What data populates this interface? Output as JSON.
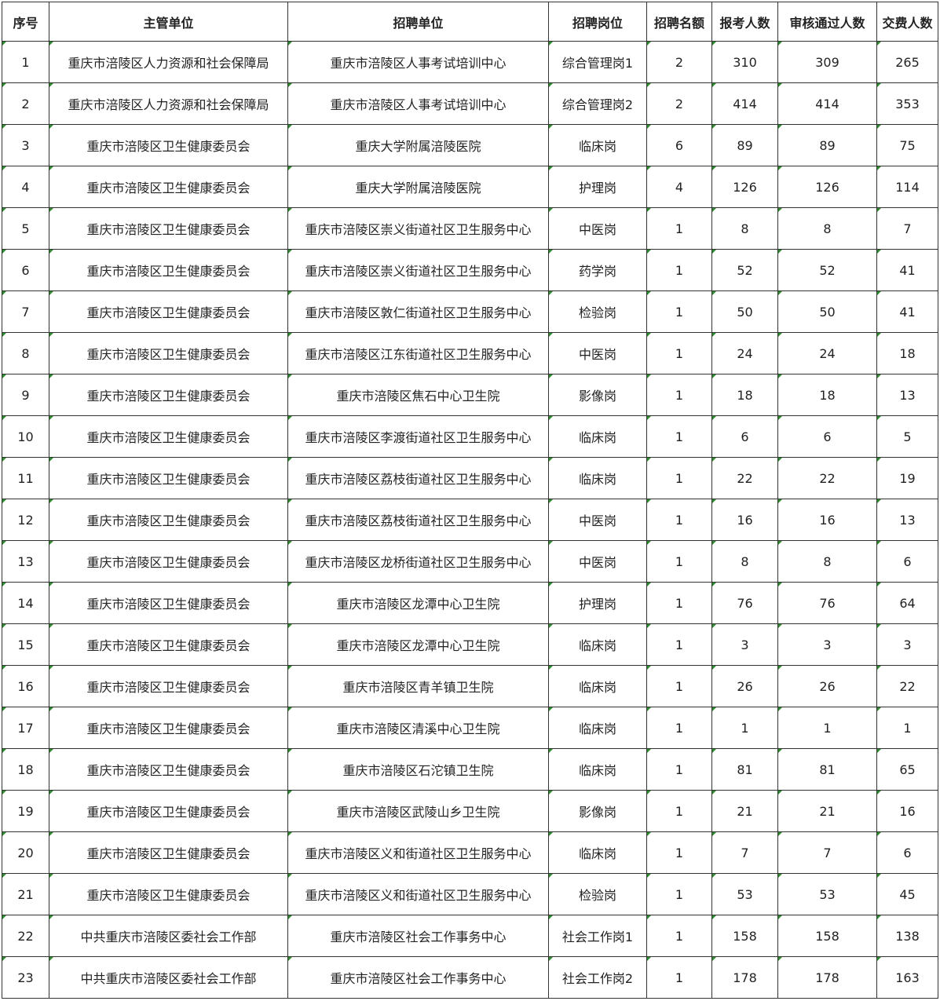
{
  "table": {
    "header": [
      "序号",
      "主管单位",
      "招聘单位",
      "招聘岗位",
      "招聘名额",
      "报考人数",
      "审核通过人数",
      "交费人数"
    ],
    "rows": [
      [
        1,
        "重庆市涪陵区人力资源和社会保障局",
        "重庆市涪陵区人事考试培训中心",
        "综合管理岗1",
        2,
        310,
        309,
        265
      ],
      [
        2,
        "重庆市涪陵区人力资源和社会保障局",
        "重庆市涪陵区人事考试培训中心",
        "综合管理岗2",
        2,
        414,
        414,
        353
      ],
      [
        3,
        "重庆市涪陵区卫生健康委员会",
        "重庆大学附属涪陵医院",
        "临床岗",
        6,
        89,
        89,
        75
      ],
      [
        4,
        "重庆市涪陵区卫生健康委员会",
        "重庆大学附属涪陵医院",
        "护理岗",
        4,
        126,
        126,
        114
      ],
      [
        5,
        "重庆市涪陵区卫生健康委员会",
        "重庆市涪陵区崇义街道社区卫生服务中心",
        "中医岗",
        1,
        8,
        8,
        7
      ],
      [
        6,
        "重庆市涪陵区卫生健康委员会",
        "重庆市涪陵区崇义街道社区卫生服务中心",
        "药学岗",
        1,
        52,
        52,
        41
      ],
      [
        7,
        "重庆市涪陵区卫生健康委员会",
        "重庆市涪陵区敦仁街道社区卫生服务中心",
        "检验岗",
        1,
        50,
        50,
        41
      ],
      [
        8,
        "重庆市涪陵区卫生健康委员会",
        "重庆市涪陵区江东街道社区卫生服务中心",
        "中医岗",
        1,
        24,
        24,
        18
      ],
      [
        9,
        "重庆市涪陵区卫生健康委员会",
        "重庆市涪陵区焦石中心卫生院",
        "影像岗",
        1,
        18,
        18,
        13
      ],
      [
        10,
        "重庆市涪陵区卫生健康委员会",
        "重庆市涪陵区李渡街道社区卫生服务中心",
        "临床岗",
        1,
        6,
        6,
        5
      ],
      [
        11,
        "重庆市涪陵区卫生健康委员会",
        "重庆市涪陵区荔枝街道社区卫生服务中心",
        "临床岗",
        1,
        22,
        22,
        19
      ],
      [
        12,
        "重庆市涪陵区卫生健康委员会",
        "重庆市涪陵区荔枝街道社区卫生服务中心",
        "中医岗",
        1,
        16,
        16,
        13
      ],
      [
        13,
        "重庆市涪陵区卫生健康委员会",
        "重庆市涪陵区龙桥街道社区卫生服务中心",
        "中医岗",
        1,
        8,
        8,
        6
      ],
      [
        14,
        "重庆市涪陵区卫生健康委员会",
        "重庆市涪陵区龙潭中心卫生院",
        "护理岗",
        1,
        76,
        76,
        64
      ],
      [
        15,
        "重庆市涪陵区卫生健康委员会",
        "重庆市涪陵区龙潭中心卫生院",
        "临床岗",
        1,
        3,
        3,
        3
      ],
      [
        16,
        "重庆市涪陵区卫生健康委员会",
        "重庆市涪陵区青羊镇卫生院",
        "临床岗",
        1,
        26,
        26,
        22
      ],
      [
        17,
        "重庆市涪陵区卫生健康委员会",
        "重庆市涪陵区清溪中心卫生院",
        "临床岗",
        1,
        1,
        1,
        1
      ],
      [
        18,
        "重庆市涪陵区卫生健康委员会",
        "重庆市涪陵区石沱镇卫生院",
        "临床岗",
        1,
        81,
        81,
        65
      ],
      [
        19,
        "重庆市涪陵区卫生健康委员会",
        "重庆市涪陵区武陵山乡卫生院",
        "影像岗",
        1,
        21,
        21,
        16
      ],
      [
        20,
        "重庆市涪陵区卫生健康委员会",
        "重庆市涪陵区义和街道社区卫生服务中心",
        "临床岗",
        1,
        7,
        7,
        6
      ],
      [
        21,
        "重庆市涪陵区卫生健康委员会",
        "重庆市涪陵区义和街道社区卫生服务中心",
        "检验岗",
        1,
        53,
        53,
        45
      ],
      [
        22,
        "中共重庆市涪陵区委社会工作部",
        "重庆市涪陵区社会工作事务中心",
        "社会工作岗1",
        1,
        158,
        158,
        138
      ],
      [
        23,
        "中共重庆市涪陵区委社会工作部",
        "重庆市涪陵区社会工作事务中心",
        "社会工作岗2",
        1,
        178,
        178,
        163
      ]
    ]
  }
}
